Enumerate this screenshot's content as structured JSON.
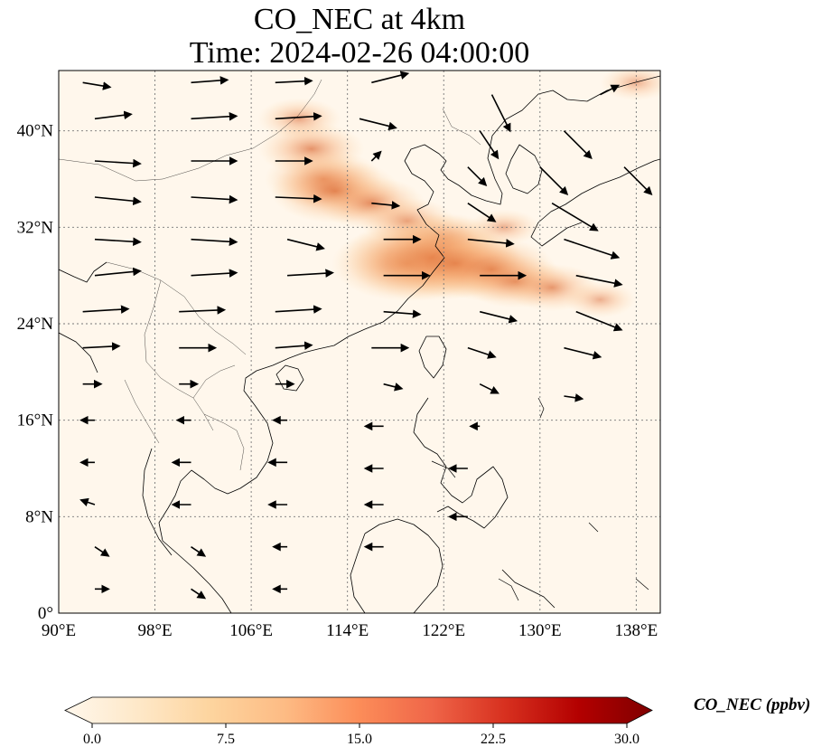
{
  "title": {
    "line1": "CO_NEC at 4km",
    "line2": "Time: 2024-02-26 04:00:00"
  },
  "map": {
    "lon_range": [
      90,
      140
    ],
    "lat_range": [
      0,
      45
    ],
    "lat_ticks": [
      {
        "value": 0,
        "label": "0°"
      },
      {
        "value": 8,
        "label": "8°N"
      },
      {
        "value": 16,
        "label": "16°N"
      },
      {
        "value": 24,
        "label": "24°N"
      },
      {
        "value": 32,
        "label": "32°N"
      },
      {
        "value": 40,
        "label": "40°N"
      }
    ],
    "lon_ticks": [
      {
        "value": 90,
        "label": "90°E"
      },
      {
        "value": 98,
        "label": "98°E"
      },
      {
        "value": 106,
        "label": "106°E"
      },
      {
        "value": 114,
        "label": "114°E"
      },
      {
        "value": 122,
        "label": "122°E"
      },
      {
        "value": 130,
        "label": "130°E"
      },
      {
        "value": 138,
        "label": "138°E"
      }
    ],
    "gridlines": true,
    "background_color": "#fff7ec",
    "plume_color": "#f4a36a",
    "plume_core_color": "#d9622b",
    "plume": [
      {
        "lon": 111,
        "lat": 38.5,
        "value": 6
      },
      {
        "lon": 110,
        "lat": 41.0,
        "value": 4
      },
      {
        "lon": 112,
        "lat": 36.0,
        "value": 7
      },
      {
        "lon": 113,
        "lat": 35.0,
        "value": 8
      },
      {
        "lon": 116,
        "lat": 34.0,
        "value": 6
      },
      {
        "lon": 119,
        "lat": 32.5,
        "value": 5
      },
      {
        "lon": 122,
        "lat": 31.0,
        "value": 6
      },
      {
        "lon": 119,
        "lat": 29.0,
        "value": 10
      },
      {
        "lon": 121,
        "lat": 29.5,
        "value": 12
      },
      {
        "lon": 123,
        "lat": 29.0,
        "value": 9
      },
      {
        "lon": 126,
        "lat": 28.5,
        "value": 8
      },
      {
        "lon": 128,
        "lat": 27.5,
        "value": 6
      },
      {
        "lon": 131,
        "lat": 27.0,
        "value": 5
      },
      {
        "lon": 135,
        "lat": 26.0,
        "value": 3
      },
      {
        "lon": 127,
        "lat": 32.0,
        "value": 3
      },
      {
        "lon": 138,
        "lat": 44.0,
        "value": 3
      }
    ],
    "wind_arrows": [
      {
        "lon": 92,
        "lat": 44,
        "u": 3,
        "v": -0.5
      },
      {
        "lon": 101,
        "lat": 44,
        "u": 4,
        "v": 0.3
      },
      {
        "lon": 108,
        "lat": 44,
        "u": 4,
        "v": 0.2
      },
      {
        "lon": 116,
        "lat": 44,
        "u": 4,
        "v": 1
      },
      {
        "lon": 126,
        "lat": 43,
        "u": 2,
        "v": -4
      },
      {
        "lon": 135,
        "lat": 43,
        "u": 2,
        "v": 1
      },
      {
        "lon": 93,
        "lat": 41,
        "u": 4,
        "v": 0.5
      },
      {
        "lon": 101,
        "lat": 41,
        "u": 5,
        "v": 0.3
      },
      {
        "lon": 108,
        "lat": 41,
        "u": 5,
        "v": 0.3
      },
      {
        "lon": 115,
        "lat": 41,
        "u": 4,
        "v": -1
      },
      {
        "lon": 125,
        "lat": 40,
        "u": 2,
        "v": -3
      },
      {
        "lon": 132,
        "lat": 40,
        "u": 3,
        "v": -3
      },
      {
        "lon": 93,
        "lat": 37.5,
        "u": 5,
        "v": -0.3
      },
      {
        "lon": 101,
        "lat": 37.5,
        "u": 5,
        "v": 0
      },
      {
        "lon": 108,
        "lat": 37.5,
        "u": 4,
        "v": 0
      },
      {
        "lon": 116,
        "lat": 37.5,
        "u": 1,
        "v": 1
      },
      {
        "lon": 124,
        "lat": 37,
        "u": 2,
        "v": -2
      },
      {
        "lon": 130,
        "lat": 37,
        "u": 3,
        "v": -3
      },
      {
        "lon": 137,
        "lat": 37,
        "u": 3,
        "v": -3
      },
      {
        "lon": 93,
        "lat": 34.5,
        "u": 5,
        "v": -0.5
      },
      {
        "lon": 101,
        "lat": 34.5,
        "u": 5,
        "v": -0.3
      },
      {
        "lon": 108,
        "lat": 34.5,
        "u": 5,
        "v": -0.2
      },
      {
        "lon": 116,
        "lat": 34,
        "u": 3,
        "v": -0.3
      },
      {
        "lon": 124,
        "lat": 34,
        "u": 3,
        "v": -2
      },
      {
        "lon": 131,
        "lat": 34,
        "u": 5,
        "v": -3
      },
      {
        "lon": 93,
        "lat": 31,
        "u": 5,
        "v": -0.3
      },
      {
        "lon": 101,
        "lat": 31,
        "u": 5,
        "v": -0.3
      },
      {
        "lon": 109,
        "lat": 31,
        "u": 4,
        "v": -1
      },
      {
        "lon": 117,
        "lat": 31,
        "u": 4,
        "v": 0
      },
      {
        "lon": 124,
        "lat": 31,
        "u": 5,
        "v": -0.5
      },
      {
        "lon": 132,
        "lat": 31,
        "u": 6,
        "v": -2
      },
      {
        "lon": 93,
        "lat": 28,
        "u": 5,
        "v": 0.5
      },
      {
        "lon": 101,
        "lat": 28,
        "u": 5,
        "v": 0.3
      },
      {
        "lon": 109,
        "lat": 28,
        "u": 5,
        "v": 0.3
      },
      {
        "lon": 117,
        "lat": 28,
        "u": 5,
        "v": 0
      },
      {
        "lon": 125,
        "lat": 28,
        "u": 5,
        "v": 0
      },
      {
        "lon": 133,
        "lat": 28,
        "u": 5,
        "v": -1
      },
      {
        "lon": 92,
        "lat": 25,
        "u": 5,
        "v": 0.3
      },
      {
        "lon": 100,
        "lat": 25,
        "u": 5,
        "v": 0.2
      },
      {
        "lon": 108,
        "lat": 25,
        "u": 5,
        "v": 0.3
      },
      {
        "lon": 117,
        "lat": 25,
        "u": 4,
        "v": -0.3
      },
      {
        "lon": 125,
        "lat": 25,
        "u": 4,
        "v": -1
      },
      {
        "lon": 133,
        "lat": 25,
        "u": 5,
        "v": -2
      },
      {
        "lon": 92,
        "lat": 22,
        "u": 4,
        "v": 0.2
      },
      {
        "lon": 100,
        "lat": 22,
        "u": 4,
        "v": 0
      },
      {
        "lon": 108,
        "lat": 22,
        "u": 4,
        "v": 0.3
      },
      {
        "lon": 116,
        "lat": 22,
        "u": 4,
        "v": 0
      },
      {
        "lon": 124,
        "lat": 22,
        "u": 3,
        "v": -1
      },
      {
        "lon": 132,
        "lat": 22,
        "u": 4,
        "v": -1
      },
      {
        "lon": 92,
        "lat": 19,
        "u": 2,
        "v": 0
      },
      {
        "lon": 100,
        "lat": 19,
        "u": 2,
        "v": 0
      },
      {
        "lon": 108,
        "lat": 19,
        "u": 2,
        "v": 0
      },
      {
        "lon": 117,
        "lat": 19,
        "u": 2,
        "v": -0.5
      },
      {
        "lon": 125,
        "lat": 19,
        "u": 2,
        "v": -1
      },
      {
        "lon": 132,
        "lat": 18,
        "u": 2,
        "v": -0.3
      },
      {
        "lon": 93,
        "lat": 16,
        "u": -1.5,
        "v": 0
      },
      {
        "lon": 101,
        "lat": 16,
        "u": -1.5,
        "v": 0
      },
      {
        "lon": 109,
        "lat": 16,
        "u": -1.5,
        "v": 0
      },
      {
        "lon": 117,
        "lat": 15.5,
        "u": -2,
        "v": 0
      },
      {
        "lon": 125,
        "lat": 15.5,
        "u": -1,
        "v": 0
      },
      {
        "lon": 93,
        "lat": 12.5,
        "u": -1.5,
        "v": 0
      },
      {
        "lon": 101,
        "lat": 12.5,
        "u": -2,
        "v": 0
      },
      {
        "lon": 109,
        "lat": 12.5,
        "u": -2,
        "v": 0
      },
      {
        "lon": 117,
        "lat": 12,
        "u": -2,
        "v": 0
      },
      {
        "lon": 124,
        "lat": 12,
        "u": -2,
        "v": 0
      },
      {
        "lon": 93,
        "lat": 9,
        "u": -1.5,
        "v": 0.5
      },
      {
        "lon": 101,
        "lat": 9,
        "u": -2,
        "v": 0
      },
      {
        "lon": 109,
        "lat": 9,
        "u": -2,
        "v": 0
      },
      {
        "lon": 117,
        "lat": 9,
        "u": -2,
        "v": 0
      },
      {
        "lon": 124,
        "lat": 8,
        "u": -2,
        "v": 0
      },
      {
        "lon": 93,
        "lat": 5.5,
        "u": 1.5,
        "v": -1
      },
      {
        "lon": 101,
        "lat": 5.5,
        "u": 1.5,
        "v": -1
      },
      {
        "lon": 109,
        "lat": 5.5,
        "u": -1.5,
        "v": 0
      },
      {
        "lon": 117,
        "lat": 5.5,
        "u": -2,
        "v": 0
      },
      {
        "lon": 93,
        "lat": 2,
        "u": 1.5,
        "v": 0
      },
      {
        "lon": 101,
        "lat": 2,
        "u": 1.5,
        "v": -1
      },
      {
        "lon": 109,
        "lat": 2,
        "u": -1.5,
        "v": 0
      }
    ]
  },
  "colorbar": {
    "title": "CO_NEC (ppbv)",
    "range": [
      0,
      30
    ],
    "ticks": [
      "0.0",
      "7.5",
      "15.0",
      "22.5",
      "30.0"
    ],
    "colors": [
      "#fff7ec",
      "#fee8c8",
      "#fdd49e",
      "#fdbb84",
      "#fc8d59",
      "#ef6548",
      "#d7301f",
      "#b30000",
      "#7f0000"
    ]
  }
}
